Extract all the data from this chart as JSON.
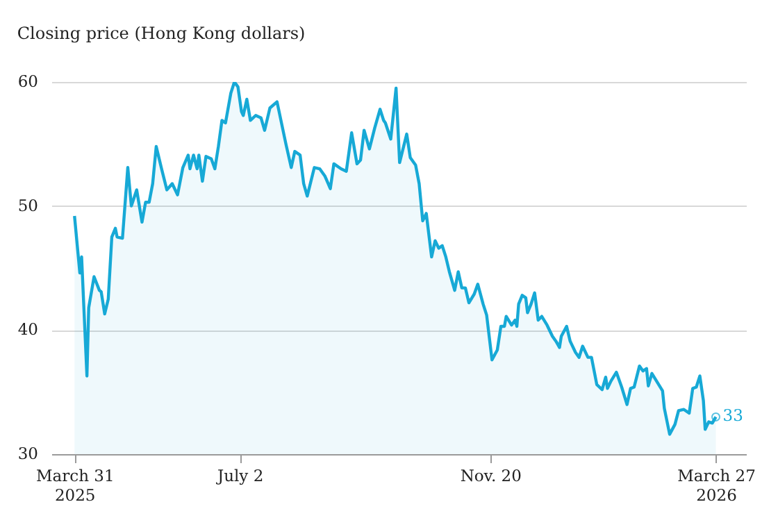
{
  "chart_data": {
    "type": "area",
    "title": "Closing price (Hong Kong dollars)",
    "x": [
      "2025-03-31",
      "2025-04-03",
      "2025-04-04",
      "2025-04-07",
      "2025-04-08",
      "2025-04-11",
      "2025-04-14",
      "2025-04-15",
      "2025-04-17",
      "2025-04-19",
      "2025-04-21",
      "2025-04-23",
      "2025-04-24",
      "2025-04-27",
      "2025-04-30",
      "2025-05-02",
      "2025-05-05",
      "2025-05-08",
      "2025-05-10",
      "2025-05-12",
      "2025-05-14",
      "2025-05-16",
      "2025-05-19",
      "2025-05-22",
      "2025-05-25",
      "2025-05-28",
      "2025-05-31",
      "2025-06-03",
      "2025-06-04",
      "2025-06-06",
      "2025-06-08",
      "2025-06-09",
      "2025-06-11",
      "2025-06-13",
      "2025-06-16",
      "2025-06-18",
      "2025-06-20",
      "2025-06-22",
      "2025-06-24",
      "2025-06-27",
      "2025-06-29",
      "2025-07-01",
      "2025-07-03",
      "2025-07-04",
      "2025-07-06",
      "2025-07-08",
      "2025-07-11",
      "2025-07-14",
      "2025-07-16",
      "2025-07-19",
      "2025-07-23",
      "2025-07-28",
      "2025-07-31",
      "2025-08-02",
      "2025-08-05",
      "2025-08-07",
      "2025-08-09",
      "2025-08-13",
      "2025-08-16",
      "2025-08-19",
      "2025-08-22",
      "2025-08-24",
      "2025-08-28",
      "2025-08-31",
      "2025-09-03",
      "2025-09-06",
      "2025-09-08",
      "2025-09-10",
      "2025-09-13",
      "2025-09-16",
      "2025-09-19",
      "2025-09-21",
      "2025-09-22",
      "2025-09-25",
      "2025-09-28",
      "2025-09-30",
      "2025-10-04",
      "2025-10-06",
      "2025-10-09",
      "2025-10-11",
      "2025-10-13",
      "2025-10-15",
      "2025-10-18",
      "2025-10-20",
      "2025-10-22",
      "2025-10-24",
      "2025-10-26",
      "2025-10-28",
      "2025-10-31",
      "2025-11-02",
      "2025-11-04",
      "2025-11-06",
      "2025-11-08",
      "2025-11-11",
      "2025-11-13",
      "2025-11-16",
      "2025-11-18",
      "2025-11-21",
      "2025-11-24",
      "2025-11-26",
      "2025-11-28",
      "2025-11-29",
      "2025-12-02",
      "2025-12-04",
      "2025-12-05",
      "2025-12-06",
      "2025-12-08",
      "2025-12-10",
      "2025-12-11",
      "2025-12-13",
      "2025-12-15",
      "2025-12-17",
      "2025-12-19",
      "2025-12-22",
      "2025-12-25",
      "2025-12-27",
      "2025-12-29",
      "2025-12-30",
      "2026-01-02",
      "2026-01-04",
      "2026-01-07",
      "2026-01-09",
      "2026-01-11",
      "2026-01-14",
      "2026-01-16",
      "2026-01-19",
      "2026-01-22",
      "2026-01-24",
      "2026-01-25",
      "2026-01-27",
      "2026-01-30",
      "2026-02-02",
      "2026-02-05",
      "2026-02-07",
      "2026-02-09",
      "2026-02-12",
      "2026-02-14",
      "2026-02-16",
      "2026-02-17",
      "2026-02-19",
      "2026-02-22",
      "2026-02-25",
      "2026-02-26",
      "2026-03-01",
      "2026-03-04",
      "2026-03-06",
      "2026-03-09",
      "2026-03-12",
      "2026-03-14",
      "2026-03-16",
      "2026-03-18",
      "2026-03-20",
      "2026-03-21",
      "2026-03-23",
      "2026-03-25",
      "2026-03-27"
    ],
    "series": [
      {
        "color": "#17a9d6",
        "values": [
          49.2,
          44.6,
          45.9,
          36.3,
          41.8,
          44.3,
          43.2,
          43.1,
          41.3,
          42.5,
          47.5,
          48.2,
          47.5,
          47.4,
          53.1,
          50.0,
          51.3,
          48.7,
          50.3,
          50.3,
          51.8,
          54.8,
          53.0,
          51.3,
          51.8,
          50.9,
          53.1,
          54.1,
          53.0,
          54.1,
          53.0,
          54.1,
          52.0,
          54.0,
          53.8,
          53.0,
          54.8,
          56.9,
          56.7,
          59.1,
          60.0,
          59.6,
          57.6,
          57.3,
          58.6,
          56.9,
          57.3,
          57.1,
          56.1,
          57.9,
          58.4,
          55.0,
          53.1,
          54.4,
          54.1,
          51.8,
          50.8,
          53.1,
          53.0,
          52.4,
          51.4,
          53.4,
          53.0,
          52.8,
          55.9,
          53.4,
          53.7,
          56.1,
          54.6,
          56.3,
          57.8,
          56.9,
          56.7,
          55.4,
          59.5,
          53.5,
          55.8,
          53.9,
          53.3,
          51.8,
          48.8,
          49.4,
          45.9,
          47.2,
          46.6,
          46.8,
          45.9,
          44.7,
          43.2,
          44.7,
          43.4,
          43.4,
          42.2,
          42.9,
          43.7,
          42.1,
          41.2,
          37.6,
          38.4,
          40.3,
          40.3,
          41.1,
          40.4,
          40.8,
          40.3,
          42.1,
          42.8,
          42.6,
          41.4,
          42.1,
          43.0,
          40.8,
          41.1,
          40.4,
          39.5,
          39.1,
          38.6,
          39.5,
          40.3,
          39.1,
          38.2,
          37.8,
          38.7,
          37.8,
          37.8,
          35.6,
          35.2,
          36.2,
          35.3,
          35.9,
          36.6,
          35.4,
          34.0,
          35.3,
          35.4,
          37.1,
          36.7,
          36.9,
          35.5,
          36.5,
          35.8,
          35.1,
          33.7,
          31.6,
          32.4,
          33.5,
          33.6,
          33.3,
          35.3,
          35.4,
          36.3,
          34.3,
          32.0,
          32.6,
          32.5,
          33.0
        ]
      }
    ],
    "xlim": [
      "2025-03-18",
      "2026-04-13"
    ],
    "xticks": [
      {
        "value": "2025-03-31",
        "label": "March 31\n2025"
      },
      {
        "value": "2025-07-02",
        "label": "July 2"
      },
      {
        "value": "2025-11-20",
        "label": "Nov. 20"
      },
      {
        "value": "2026-03-27",
        "label": "March 27\n2026"
      }
    ],
    "ylim": [
      30,
      60
    ],
    "yticks": [
      30,
      40,
      50,
      60
    ],
    "grid": "y",
    "annotations": [
      {
        "text": "33",
        "x": "2026-03-27",
        "y": 33
      }
    ]
  }
}
